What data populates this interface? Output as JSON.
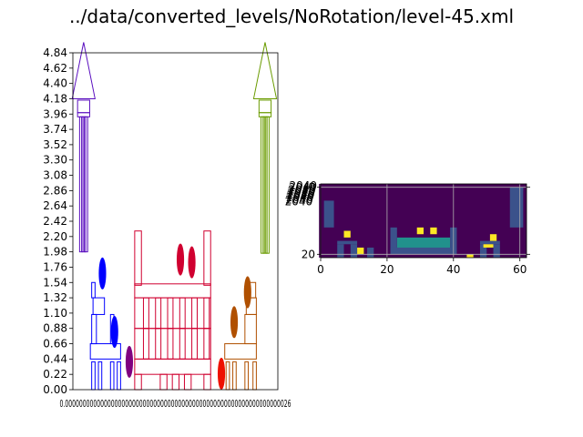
{
  "title": "../data/converted_levels/NoRotation/level-45.xml",
  "chart_data": [
    {
      "type": "scatter",
      "panel": "left",
      "ylim": [
        0,
        4.84
      ],
      "yticks": [
        "0.00",
        "0.22",
        "0.44",
        "0.66",
        "0.88",
        "1.10",
        "1.32",
        "1.54",
        "1.76",
        "1.98",
        "2.20",
        "2.42",
        "2.64",
        "2.86",
        "3.08",
        "3.30",
        "3.52",
        "3.74",
        "3.96",
        "4.18",
        "4.40",
        "4.62",
        "4.84"
      ],
      "xtick_labels_overlapping": "0.0000000000000000000000000000000000000000000000000000000000000026",
      "grid": false,
      "objects": [
        {
          "kind": "rocket",
          "color": "#5a0fbf",
          "x": 0.16,
          "base": 1.98,
          "top": 4.84,
          "w": 0.12
        },
        {
          "kind": "rocket",
          "color": "#6a9b00",
          "x": 2.86,
          "base": 1.96,
          "top": 4.84,
          "w": 0.12
        },
        {
          "kind": "ellipse",
          "color": "#0000ff",
          "x": 0.44,
          "y": 1.67,
          "rx": 0.055,
          "ry": 0.23
        },
        {
          "kind": "ellipse",
          "color": "#0000ff",
          "x": 0.62,
          "y": 0.83,
          "rx": 0.055,
          "ry": 0.23
        },
        {
          "kind": "ellipse",
          "color": "#800080",
          "x": 0.84,
          "y": 0.4,
          "rx": 0.055,
          "ry": 0.23
        },
        {
          "kind": "ellipse",
          "color": "#d00030",
          "x": 1.6,
          "y": 1.87,
          "rx": 0.055,
          "ry": 0.23
        },
        {
          "kind": "ellipse",
          "color": "#d00030",
          "x": 1.77,
          "y": 1.83,
          "rx": 0.055,
          "ry": 0.23
        },
        {
          "kind": "ellipse",
          "color": "#ee1100",
          "x": 2.21,
          "y": 0.23,
          "rx": 0.055,
          "ry": 0.23
        },
        {
          "kind": "ellipse",
          "color": "#b05000",
          "x": 2.4,
          "y": 0.97,
          "rx": 0.055,
          "ry": 0.23
        },
        {
          "kind": "ellipse",
          "color": "#b05000",
          "x": 2.6,
          "y": 1.4,
          "rx": 0.055,
          "ry": 0.23
        }
      ]
    },
    {
      "type": "heatmap",
      "panel": "right",
      "xlim": [
        0,
        62
      ],
      "ylim": [
        21,
        -1
      ],
      "xticks": [
        "0",
        "20",
        "40",
        "60"
      ],
      "yticks": [
        "0",
        "20"
      ],
      "grid": true,
      "colors": {
        "bg": "#440154",
        "structure": "#3b528b",
        "platform": "#21918c",
        "target": "#fde725",
        "hint": "#5ec962"
      }
    }
  ]
}
